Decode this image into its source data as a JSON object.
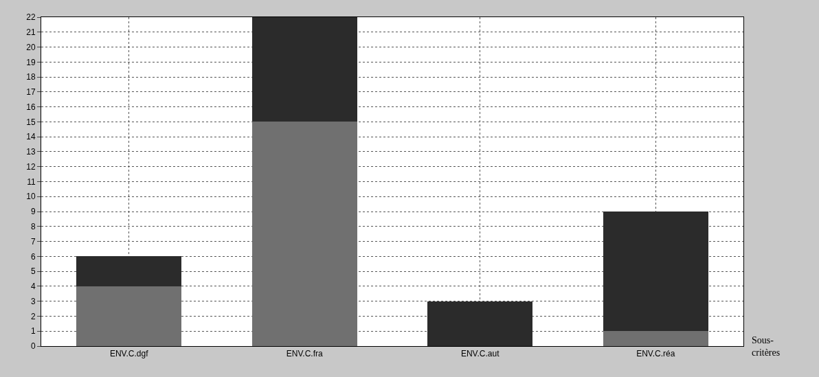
{
  "chart_data": {
    "type": "bar",
    "stacked": true,
    "xlabel": "Sous-critères",
    "categories": [
      "ENV.C.dgf",
      "ENV.C.fra",
      "ENV.C.aut",
      "ENV.C.réa"
    ],
    "series": [
      {
        "color": "#707070",
        "values": [
          4,
          15,
          0,
          1
        ]
      },
      {
        "color": "#2b2b2b",
        "values": [
          2,
          7,
          3,
          8
        ]
      }
    ],
    "ylim": [
      0,
      22
    ],
    "yticks": [
      0,
      1,
      2,
      3,
      4,
      5,
      6,
      7,
      8,
      9,
      10,
      11,
      12,
      13,
      14,
      15,
      16,
      17,
      18,
      19,
      20,
      21,
      22
    ],
    "grid": true
  }
}
